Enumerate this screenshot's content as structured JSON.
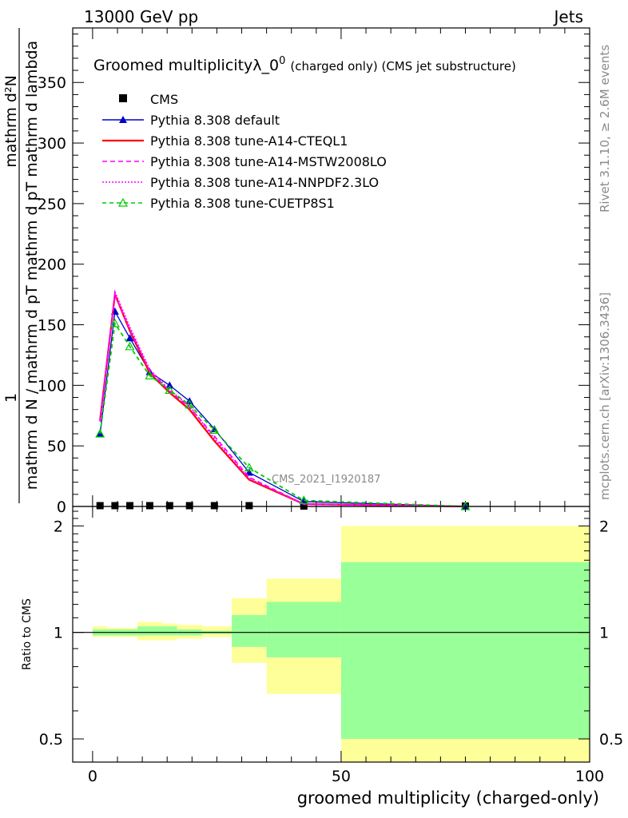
{
  "header": {
    "left": "13000 GeV pp",
    "right": "Jets"
  },
  "side": {
    "rivet": "Rivet 3.1.10, ≥ 2.6M events",
    "mcplots": "mcplots.cern.ch [arXiv:1306.3436]"
  },
  "chart_data": [
    {
      "type": "line",
      "title": "Groomed multiplicityλ_0",
      "title_sup": "0",
      "title_suffix": "(charged only) (CMS jet substructure)",
      "ylabel_numerator": "mathrm d²N",
      "ylabel_denominator": "mathrm d N / mathrm d pT mathrm d pT mathrm d lambda",
      "ylabel_prefix": "1",
      "xlim": [
        -4,
        100
      ],
      "ylim": [
        0,
        395
      ],
      "yticks": [
        0,
        50,
        100,
        150,
        200,
        250,
        300,
        350
      ],
      "watermark": "CMS_2021_I1920187",
      "legend_position": "top-left",
      "series": [
        {
          "name": "CMS",
          "style": "data",
          "color": "#000000",
          "x": [
            1.5,
            4.5,
            7.5,
            11.5,
            15.5,
            19.5,
            24.5,
            31.5,
            42.5,
            75
          ],
          "y": [
            1,
            1,
            1,
            1,
            1,
            1,
            1,
            1,
            0.5,
            0.1
          ]
        },
        {
          "name": "Pythia 8.308 default",
          "style": "solid-triangle",
          "color": "#0000cc",
          "x": [
            1.5,
            4.5,
            7.5,
            11.5,
            15.5,
            19.5,
            24.5,
            31.5,
            42.5,
            75
          ],
          "y": [
            60,
            161,
            139,
            111,
            100,
            87,
            64,
            28,
            4,
            0
          ]
        },
        {
          "name": "Pythia 8.308 tune-A14-CTEQL1",
          "style": "solid",
          "color": "#ff0000",
          "x": [
            1.5,
            4.5,
            7.5,
            11.5,
            15.5,
            19.5,
            24.5,
            31.5,
            42.5,
            75
          ],
          "y": [
            71,
            175,
            145,
            110,
            94,
            80,
            54,
            22,
            2,
            0
          ]
        },
        {
          "name": "Pythia 8.308 tune-A14-MSTW2008LO",
          "style": "dashed",
          "color": "#ff00ff",
          "x": [
            1.5,
            4.5,
            7.5,
            11.5,
            15.5,
            19.5,
            24.5,
            31.5,
            42.5,
            75
          ],
          "y": [
            70,
            175,
            146,
            112,
            95,
            82,
            58,
            24,
            2,
            0
          ]
        },
        {
          "name": "Pythia 8.308 tune-A14-NNPDF2.3LO",
          "style": "dotted",
          "color": "#ff00ff",
          "x": [
            1.5,
            4.5,
            7.5,
            11.5,
            15.5,
            19.5,
            24.5,
            31.5,
            42.5,
            75
          ],
          "y": [
            72,
            177,
            148,
            113,
            96,
            83,
            56,
            23,
            2,
            0
          ]
        },
        {
          "name": "Pythia 8.308 tune-CUETP8S1",
          "style": "dashed-open-triangle",
          "color": "#00cc00",
          "x": [
            1.5,
            4.5,
            7.5,
            11.5,
            15.5,
            19.5,
            24.5,
            31.5,
            42.5,
            75
          ],
          "y": [
            60,
            151,
            132,
            108,
            96,
            84,
            63,
            32,
            5,
            0
          ]
        }
      ]
    },
    {
      "type": "area",
      "xlabel": "groomed multiplicity (charged-only)",
      "ylabel": "Ratio to CMS",
      "xlim": [
        -4,
        100
      ],
      "ylim": [
        0.43,
        2.27
      ],
      "yscale": "log",
      "yticks": [
        0.5,
        1,
        2
      ],
      "xticks": [
        0,
        50,
        100
      ],
      "reference": 1,
      "bins": [
        {
          "lo": 0,
          "hi": 3,
          "band_inner": [
            0.98,
            1.02
          ],
          "band_outer": [
            0.97,
            1.04
          ]
        },
        {
          "lo": 3,
          "hi": 6,
          "band_inner": [
            0.98,
            1.02
          ],
          "band_outer": [
            0.97,
            1.03
          ]
        },
        {
          "lo": 6,
          "hi": 9,
          "band_inner": [
            0.98,
            1.02
          ],
          "band_outer": [
            0.97,
            1.03
          ]
        },
        {
          "lo": 9,
          "hi": 14,
          "band_inner": [
            0.98,
            1.04
          ],
          "band_outer": [
            0.95,
            1.07
          ]
        },
        {
          "lo": 14,
          "hi": 17,
          "band_inner": [
            0.98,
            1.04
          ],
          "band_outer": [
            0.95,
            1.06
          ]
        },
        {
          "lo": 17,
          "hi": 22,
          "band_inner": [
            0.98,
            1.02
          ],
          "band_outer": [
            0.96,
            1.05
          ]
        },
        {
          "lo": 22,
          "hi": 28,
          "band_inner": [
            0.99,
            1.01
          ],
          "band_outer": [
            0.97,
            1.04
          ]
        },
        {
          "lo": 28,
          "hi": 35,
          "band_inner": [
            0.91,
            1.12
          ],
          "band_outer": [
            0.82,
            1.25
          ]
        },
        {
          "lo": 35,
          "hi": 50,
          "band_inner": [
            0.85,
            1.22
          ],
          "band_outer": [
            0.67,
            1.42
          ]
        },
        {
          "lo": 50,
          "hi": 100,
          "band_inner": [
            0.5,
            1.58
          ],
          "band_outer": [
            0.43,
            2.0
          ]
        }
      ],
      "colors": {
        "inner": "#99ff99",
        "outer": "#ffff99"
      }
    }
  ]
}
